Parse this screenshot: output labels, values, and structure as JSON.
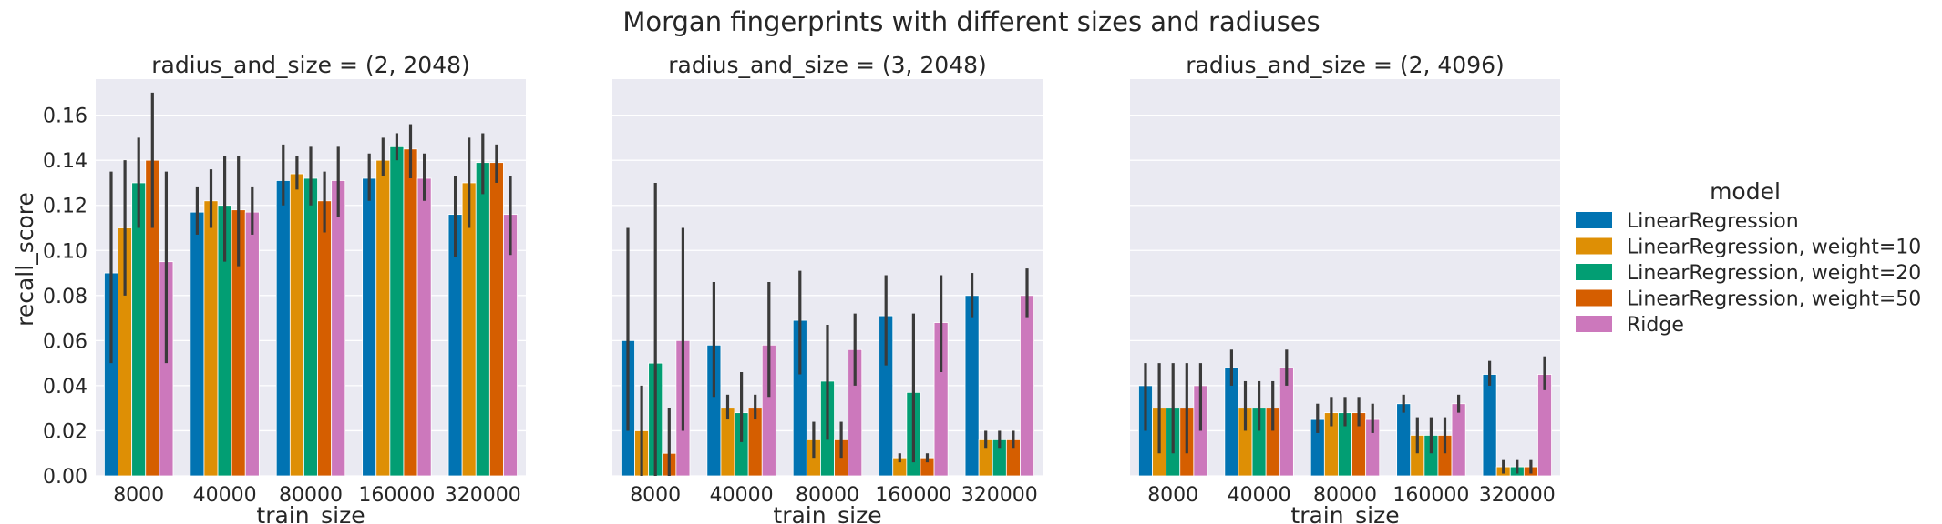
{
  "chart_data": {
    "type": "bar",
    "title": "Morgan fingerprints with different sizes and radiuses",
    "xlabel": "train_size",
    "ylabel": "recall_score",
    "ylim": [
      0,
      0.176
    ],
    "yticks": [
      "0.00",
      "0.02",
      "0.04",
      "0.06",
      "0.08",
      "0.10",
      "0.12",
      "0.14",
      "0.16"
    ],
    "categories": [
      "8000",
      "40000",
      "80000",
      "160000",
      "320000"
    ],
    "grid": true,
    "legend": {
      "title": "model",
      "placement": "right",
      "entries": [
        "LinearRegression",
        "LinearRegression, weight=10",
        "LinearRegression, weight=20",
        "LinearRegression, weight=50",
        "Ridge"
      ]
    },
    "colors": [
      "#0173b2",
      "#de8f05",
      "#029e73",
      "#d55e00",
      "#cc78bc"
    ],
    "panels": [
      {
        "title": "radius_and_size = (2, 2048)",
        "series": [
          {
            "name": "LinearRegression",
            "values": [
              0.09,
              0.117,
              0.131,
              0.132,
              0.116
            ],
            "err": [
              [
                0.05,
                0.135
              ],
              [
                0.107,
                0.128
              ],
              [
                0.12,
                0.147
              ],
              [
                0.122,
                0.143
              ],
              [
                0.097,
                0.133
              ]
            ]
          },
          {
            "name": "LinearRegression, weight=10",
            "values": [
              0.11,
              0.122,
              0.134,
              0.14,
              0.13
            ],
            "err": [
              [
                0.08,
                0.14
              ],
              [
                0.11,
                0.136
              ],
              [
                0.127,
                0.142
              ],
              [
                0.133,
                0.15
              ],
              [
                0.11,
                0.15
              ]
            ]
          },
          {
            "name": "LinearRegression, weight=20",
            "values": [
              0.13,
              0.12,
              0.132,
              0.146,
              0.139
            ],
            "err": [
              [
                0.11,
                0.15
              ],
              [
                0.095,
                0.142
              ],
              [
                0.12,
                0.146
              ],
              [
                0.14,
                0.152
              ],
              [
                0.125,
                0.152
              ]
            ]
          },
          {
            "name": "LinearRegression, weight=50",
            "values": [
              0.14,
              0.118,
              0.122,
              0.145,
              0.139
            ],
            "err": [
              [
                0.11,
                0.17
              ],
              [
                0.093,
                0.142
              ],
              [
                0.108,
                0.135
              ],
              [
                0.132,
                0.156
              ],
              [
                0.13,
                0.147
              ]
            ]
          },
          {
            "name": "Ridge",
            "values": [
              0.095,
              0.117,
              0.131,
              0.132,
              0.116
            ],
            "err": [
              [
                0.05,
                0.135
              ],
              [
                0.107,
                0.128
              ],
              [
                0.115,
                0.146
              ],
              [
                0.122,
                0.143
              ],
              [
                0.098,
                0.133
              ]
            ]
          }
        ]
      },
      {
        "title": "radius_and_size = (3, 2048)",
        "series": [
          {
            "name": "LinearRegression",
            "values": [
              0.06,
              0.058,
              0.069,
              0.071,
              0.08
            ],
            "err": [
              [
                0.02,
                0.11
              ],
              [
                0.035,
                0.086
              ],
              [
                0.045,
                0.091
              ],
              [
                0.049,
                0.089
              ],
              [
                0.07,
                0.09
              ]
            ]
          },
          {
            "name": "LinearRegression, weight=10",
            "values": [
              0.02,
              0.03,
              0.016,
              0.008,
              0.016
            ],
            "err": [
              [
                0.0,
                0.04
              ],
              [
                0.025,
                0.036
              ],
              [
                0.008,
                0.024
              ],
              [
                0.006,
                0.01
              ],
              [
                0.012,
                0.02
              ]
            ]
          },
          {
            "name": "LinearRegression, weight=20",
            "values": [
              0.05,
              0.028,
              0.042,
              0.037,
              0.016
            ],
            "err": [
              [
                0.0,
                0.13
              ],
              [
                0.015,
                0.046
              ],
              [
                0.016,
                0.067
              ],
              [
                0.006,
                0.072
              ],
              [
                0.012,
                0.02
              ]
            ]
          },
          {
            "name": "LinearRegression, weight=50",
            "values": [
              0.01,
              0.03,
              0.016,
              0.008,
              0.016
            ],
            "err": [
              [
                0.0,
                0.03
              ],
              [
                0.025,
                0.036
              ],
              [
                0.008,
                0.024
              ],
              [
                0.006,
                0.01
              ],
              [
                0.012,
                0.02
              ]
            ]
          },
          {
            "name": "Ridge",
            "values": [
              0.06,
              0.058,
              0.056,
              0.068,
              0.08
            ],
            "err": [
              [
                0.02,
                0.11
              ],
              [
                0.035,
                0.086
              ],
              [
                0.04,
                0.072
              ],
              [
                0.046,
                0.089
              ],
              [
                0.07,
                0.092
              ]
            ]
          }
        ]
      },
      {
        "title": "radius_and_size = (2, 4096)",
        "series": [
          {
            "name": "LinearRegression",
            "values": [
              0.04,
              0.048,
              0.025,
              0.032,
              0.045
            ],
            "err": [
              [
                0.02,
                0.05
              ],
              [
                0.04,
                0.056
              ],
              [
                0.019,
                0.032
              ],
              [
                0.028,
                0.036
              ],
              [
                0.04,
                0.051
              ]
            ]
          },
          {
            "name": "LinearRegression, weight=10",
            "values": [
              0.03,
              0.03,
              0.028,
              0.018,
              0.004
            ],
            "err": [
              [
                0.01,
                0.05
              ],
              [
                0.02,
                0.042
              ],
              [
                0.022,
                0.035
              ],
              [
                0.01,
                0.026
              ],
              [
                0.001,
                0.007
              ]
            ]
          },
          {
            "name": "LinearRegression, weight=20",
            "values": [
              0.03,
              0.03,
              0.028,
              0.018,
              0.004
            ],
            "err": [
              [
                0.01,
                0.05
              ],
              [
                0.02,
                0.042
              ],
              [
                0.022,
                0.035
              ],
              [
                0.01,
                0.026
              ],
              [
                0.001,
                0.007
              ]
            ]
          },
          {
            "name": "LinearRegression, weight=50",
            "values": [
              0.03,
              0.03,
              0.028,
              0.018,
              0.004
            ],
            "err": [
              [
                0.01,
                0.05
              ],
              [
                0.02,
                0.042
              ],
              [
                0.022,
                0.035
              ],
              [
                0.01,
                0.026
              ],
              [
                0.001,
                0.007
              ]
            ]
          },
          {
            "name": "Ridge",
            "values": [
              0.04,
              0.048,
              0.025,
              0.032,
              0.045
            ],
            "err": [
              [
                0.02,
                0.05
              ],
              [
                0.04,
                0.056
              ],
              [
                0.019,
                0.032
              ],
              [
                0.028,
                0.036
              ],
              [
                0.038,
                0.053
              ]
            ]
          }
        ]
      }
    ]
  }
}
